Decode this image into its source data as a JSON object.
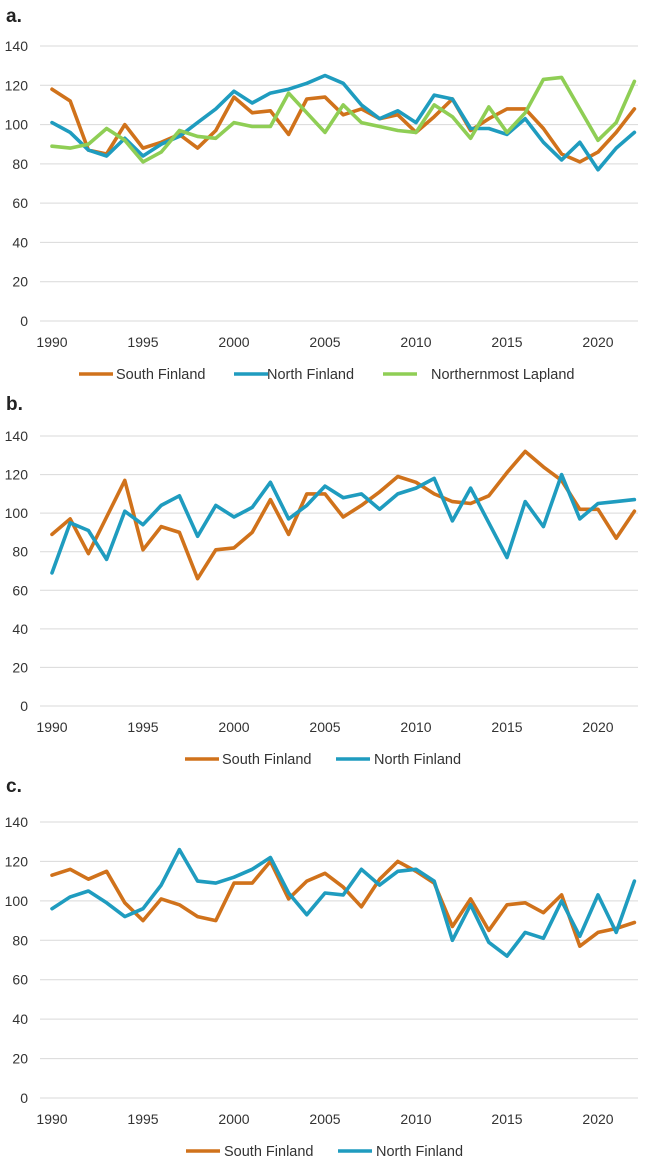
{
  "colors": {
    "South Finland": "#d0721b",
    "North Finland": "#1f9cbf",
    "Northernmost Lapland": "#8fce55",
    "grid": "#d9d9d9"
  },
  "chart_data": [
    {
      "panel": "a.",
      "type": "line",
      "xlabel": "",
      "ylabel": "",
      "ylim": [
        0,
        140
      ],
      "yticks": [
        0,
        20,
        40,
        60,
        80,
        100,
        120,
        140
      ],
      "xticks": [
        1990,
        1995,
        2000,
        2005,
        2010,
        2015,
        2020
      ],
      "grid": true,
      "legend": "bottom",
      "x": [
        1990,
        1991,
        1992,
        1993,
        1994,
        1995,
        1996,
        1997,
        1998,
        1999,
        2000,
        2001,
        2002,
        2003,
        2004,
        2005,
        2006,
        2007,
        2008,
        2009,
        2010,
        2011,
        2012,
        2013,
        2014,
        2015,
        2016,
        2017,
        2018,
        2019,
        2020,
        2021,
        2022
      ],
      "series": [
        {
          "name": "South Finland",
          "values": [
            118,
            112,
            87,
            85,
            100,
            88,
            91,
            95,
            88,
            97,
            114,
            106,
            107,
            95,
            113,
            114,
            105,
            108,
            103,
            105,
            96,
            104,
            113,
            97,
            103,
            108,
            108,
            98,
            85,
            81,
            86,
            96,
            108
          ]
        },
        {
          "name": "North Finland",
          "values": [
            101,
            96,
            87,
            84,
            93,
            84,
            90,
            94,
            101,
            108,
            117,
            111,
            116,
            118,
            121,
            125,
            121,
            110,
            103,
            107,
            101,
            115,
            113,
            98,
            98,
            95,
            103,
            91,
            82,
            91,
            77,
            88,
            96
          ]
        },
        {
          "name": "Northernmost Lapland",
          "values": [
            89,
            88,
            90,
            98,
            92,
            81,
            86,
            97,
            94,
            93,
            101,
            99,
            99,
            116,
            106,
            96,
            110,
            101,
            99,
            97,
            96,
            110,
            104,
            93,
            109,
            96,
            106,
            123,
            124,
            108,
            92,
            101,
            122
          ]
        }
      ]
    },
    {
      "panel": "b.",
      "type": "line",
      "xlabel": "",
      "ylabel": "",
      "ylim": [
        0,
        140
      ],
      "yticks": [
        0,
        20,
        40,
        60,
        80,
        100,
        120,
        140
      ],
      "xticks": [
        1990,
        1995,
        2000,
        2005,
        2010,
        2015,
        2020
      ],
      "grid": true,
      "legend": "bottom",
      "x": [
        1990,
        1991,
        1992,
        1993,
        1994,
        1995,
        1996,
        1997,
        1998,
        1999,
        2000,
        2001,
        2002,
        2003,
        2004,
        2005,
        2006,
        2007,
        2008,
        2009,
        2010,
        2011,
        2012,
        2013,
        2014,
        2015,
        2016,
        2017,
        2018,
        2019,
        2020,
        2021,
        2022
      ],
      "series": [
        {
          "name": "South Finland",
          "values": [
            89,
            97,
            79,
            98,
            117,
            81,
            93,
            90,
            66,
            81,
            82,
            90,
            107,
            89,
            110,
            110,
            98,
            104,
            111,
            119,
            116,
            110,
            106,
            105,
            109,
            121,
            132,
            124,
            117,
            102,
            102,
            87,
            101
          ]
        },
        {
          "name": "North Finland",
          "values": [
            69,
            95,
            91,
            76,
            101,
            94,
            104,
            109,
            88,
            104,
            98,
            103,
            116,
            97,
            104,
            114,
            108,
            110,
            102,
            110,
            113,
            118,
            96,
            113,
            95,
            77,
            106,
            93,
            120,
            97,
            105,
            106,
            107
          ]
        }
      ]
    },
    {
      "panel": "c.",
      "type": "line",
      "xlabel": "",
      "ylabel": "",
      "ylim": [
        0,
        140
      ],
      "yticks": [
        0,
        20,
        40,
        60,
        80,
        100,
        120,
        140
      ],
      "xticks": [
        1990,
        1995,
        2000,
        2005,
        2010,
        2015,
        2020
      ],
      "grid": true,
      "legend": "bottom",
      "x": [
        1990,
        1991,
        1992,
        1993,
        1994,
        1995,
        1996,
        1997,
        1998,
        1999,
        2000,
        2001,
        2002,
        2003,
        2004,
        2005,
        2006,
        2007,
        2008,
        2009,
        2010,
        2011,
        2012,
        2013,
        2014,
        2015,
        2016,
        2017,
        2018,
        2019,
        2020,
        2021,
        2022
      ],
      "series": [
        {
          "name": "South Finland",
          "values": [
            113,
            116,
            111,
            115,
            99,
            90,
            101,
            98,
            92,
            90,
            109,
            109,
            120,
            101,
            110,
            114,
            107,
            97,
            111,
            120,
            115,
            109,
            87,
            101,
            85,
            98,
            99,
            94,
            103,
            77,
            84,
            86,
            89
          ]
        },
        {
          "name": "North Finland",
          "values": [
            96,
            102,
            105,
            99,
            92,
            96,
            108,
            126,
            110,
            109,
            112,
            116,
            122,
            104,
            93,
            104,
            103,
            116,
            108,
            115,
            116,
            110,
            80,
            98,
            79,
            72,
            84,
            81,
            100,
            82,
            103,
            84,
            110
          ]
        }
      ]
    }
  ]
}
